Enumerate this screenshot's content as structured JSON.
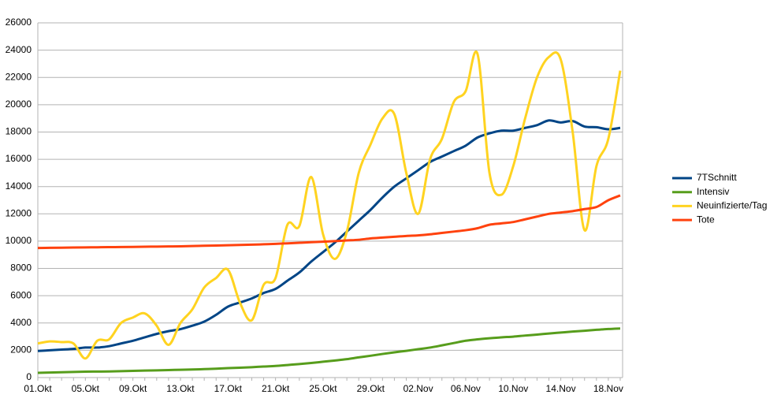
{
  "chart_data": {
    "type": "line",
    "categories": [
      "01.Okt",
      null,
      null,
      null,
      "05.Okt",
      null,
      null,
      null,
      "09.Okt",
      null,
      null,
      null,
      "13.Okt",
      null,
      null,
      null,
      "17.Okt",
      null,
      null,
      null,
      "21.Okt",
      null,
      null,
      null,
      "25.Okt",
      null,
      null,
      null,
      "29.Okt",
      null,
      null,
      null,
      "02.Nov",
      null,
      null,
      null,
      "06.Nov",
      null,
      null,
      null,
      "10.Nov",
      null,
      null,
      null,
      "14.Nov",
      null,
      null,
      null,
      "18.Nov",
      null
    ],
    "series": [
      {
        "name": "7TSchnitt",
        "color": "#004586",
        "values": [
          1950,
          2000,
          2050,
          2100,
          2200,
          2200,
          2300,
          2500,
          2700,
          2950,
          3200,
          3400,
          3550,
          3800,
          4100,
          4600,
          5200,
          5500,
          5800,
          6200,
          6500,
          7100,
          7700,
          8500,
          9200,
          9900,
          10700,
          11500,
          12300,
          13200,
          14000,
          14600,
          15200,
          15800,
          16200,
          16600,
          17000,
          17600,
          17900,
          18100,
          18100,
          18300,
          18500,
          18850,
          18700,
          18800,
          18400,
          18350,
          18200,
          18300
        ]
      },
      {
        "name": "Intensiv",
        "color": "#579d1c",
        "values": [
          350,
          370,
          390,
          410,
          430,
          440,
          450,
          470,
          490,
          510,
          530,
          550,
          570,
          590,
          620,
          650,
          690,
          720,
          760,
          810,
          850,
          920,
          990,
          1070,
          1160,
          1250,
          1350,
          1480,
          1600,
          1730,
          1850,
          1960,
          2080,
          2200,
          2360,
          2530,
          2700,
          2800,
          2880,
          2950,
          3000,
          3080,
          3150,
          3230,
          3300,
          3370,
          3430,
          3500,
          3560,
          3600
        ]
      },
      {
        "name": "Neuinfizierte/Tag",
        "color": "#ffd320",
        "values": [
          2500,
          2650,
          2600,
          2500,
          1400,
          2700,
          2800,
          4000,
          4400,
          4700,
          3800,
          2400,
          4000,
          5000,
          6600,
          7300,
          7900,
          5500,
          4200,
          6800,
          7300,
          11200,
          11100,
          14700,
          10500,
          8700,
          10700,
          15000,
          17100,
          19000,
          19300,
          15000,
          12000,
          16000,
          17500,
          20200,
          21000,
          23700,
          15000,
          13400,
          15500,
          19000,
          22000,
          23500,
          23300,
          18000,
          10800,
          15500,
          17500,
          22500
        ]
      },
      {
        "name": "Tote",
        "color": "#ff420e",
        "values": [
          9500,
          9510,
          9520,
          9530,
          9540,
          9550,
          9560,
          9570,
          9580,
          9590,
          9600,
          9610,
          9620,
          9640,
          9660,
          9680,
          9700,
          9720,
          9740,
          9770,
          9800,
          9840,
          9880,
          9920,
          9960,
          10000,
          10050,
          10100,
          10200,
          10260,
          10320,
          10380,
          10420,
          10500,
          10600,
          10700,
          10800,
          10950,
          11200,
          11300,
          11400,
          11600,
          11800,
          12000,
          12100,
          12200,
          12350,
          12500,
          13000,
          13350
        ]
      }
    ],
    "ylim": [
      0,
      26000
    ],
    "yticks": [
      0,
      2000,
      4000,
      6000,
      8000,
      10000,
      12000,
      14000,
      16000,
      18000,
      20000,
      22000,
      24000,
      26000
    ],
    "grid": true,
    "legend": "right"
  }
}
